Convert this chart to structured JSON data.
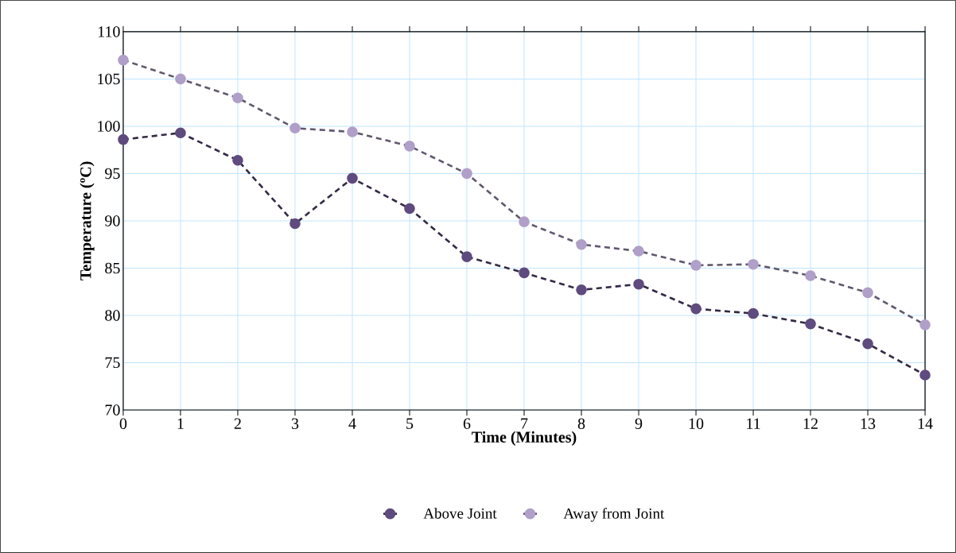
{
  "chart_data": {
    "type": "line",
    "xlabel": "Time (Minutes)",
    "ylabel": "Temperature (ºC)",
    "x": [
      0,
      1,
      2,
      3,
      4,
      5,
      6,
      7,
      8,
      9,
      10,
      11,
      12,
      13,
      14
    ],
    "series": [
      {
        "name": "Above Joint",
        "color": "#5f4b7f",
        "values": [
          98.6,
          99.3,
          96.4,
          89.7,
          94.5,
          91.3,
          86.2,
          84.5,
          82.7,
          83.3,
          80.7,
          80.2,
          79.1,
          77.0,
          73.7
        ]
      },
      {
        "name": "Away from Joint",
        "color": "#b09fc9",
        "values": [
          107.0,
          105.0,
          103.0,
          99.8,
          99.4,
          97.9,
          95.0,
          89.9,
          87.5,
          86.8,
          85.3,
          85.4,
          84.2,
          82.4,
          79.0
        ]
      }
    ],
    "xlim": [
      0,
      14
    ],
    "xticks": [
      0,
      1,
      2,
      3,
      4,
      5,
      6,
      7,
      8,
      9,
      10,
      11,
      12,
      13,
      14
    ],
    "ylim": [
      70,
      110
    ],
    "yticks": [
      70,
      75,
      80,
      85,
      90,
      95,
      100,
      105,
      110
    ],
    "grid": true,
    "legend": "bottom",
    "marker": "circle",
    "line_style": "dashed"
  }
}
